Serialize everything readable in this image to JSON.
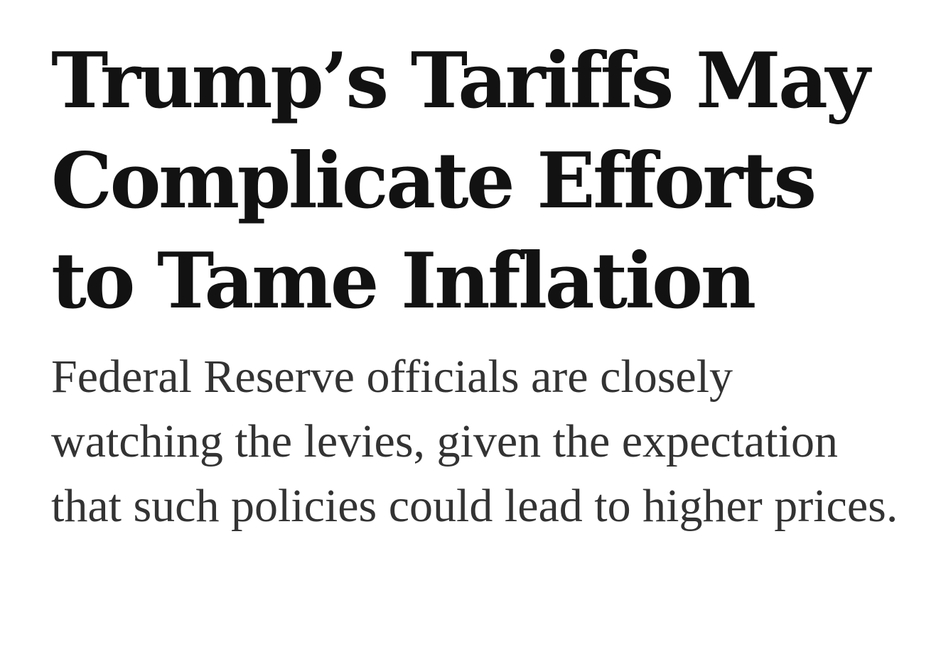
{
  "article": {
    "headline": "Trump’s Tariffs May Complicate Efforts to Tame Inflation",
    "summary": "Federal Reserve officials are closely watching the levies, given the expectation that such policies could lead to higher prices."
  },
  "colors": {
    "headline": "#121212",
    "summary": "#333333",
    "background": "#ffffff"
  }
}
